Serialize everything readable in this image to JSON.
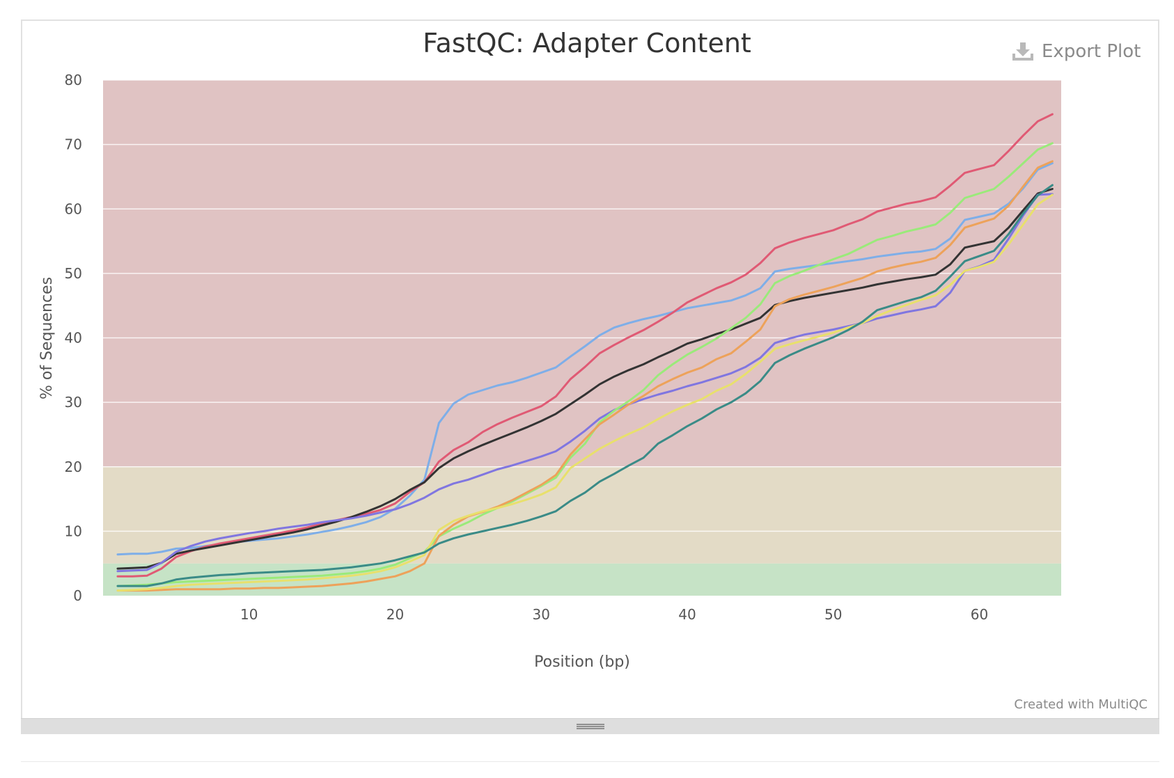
{
  "chart_data": {
    "type": "line",
    "title": "FastQC: Adapter Content",
    "xlabel": "Position (bp)",
    "ylabel": "% of Sequences",
    "xlim": [
      0,
      65.6
    ],
    "ylim": [
      0,
      80
    ],
    "xticks": [
      10,
      20,
      30,
      40,
      50,
      60
    ],
    "yticks": [
      0,
      10,
      20,
      30,
      40,
      50,
      60,
      70,
      80
    ],
    "grid": true,
    "legend": "none",
    "bands": [
      {
        "from": 0,
        "to": 5,
        "color": "#c6e3c6"
      },
      {
        "from": 5,
        "to": 20,
        "color": "#e3dbc6"
      },
      {
        "from": 20,
        "to": 80,
        "color": "#e0c3c3"
      }
    ],
    "x": [
      1,
      2,
      3,
      4,
      5,
      6,
      7,
      8,
      9,
      10,
      11,
      12,
      13,
      14,
      15,
      16,
      17,
      18,
      19,
      20,
      21,
      22,
      23,
      24,
      25,
      26,
      27,
      28,
      29,
      30,
      31,
      32,
      33,
      34,
      35,
      36,
      37,
      38,
      39,
      40,
      41,
      42,
      43,
      44,
      45,
      46,
      47,
      48,
      49,
      50,
      51,
      52,
      53,
      54,
      55,
      56,
      57,
      58,
      59,
      60,
      61,
      62,
      63,
      64,
      65
    ],
    "series": [
      {
        "color": "#7eaee8",
        "values": [
          6.4,
          6.5,
          6.5,
          6.8,
          7.3,
          7.4,
          7.7,
          8.0,
          8.3,
          8.5,
          8.7,
          8.9,
          9.2,
          9.5,
          9.9,
          10.3,
          10.8,
          11.4,
          12.2,
          13.5,
          15.5,
          18.0,
          26.8,
          29.8,
          31.2,
          31.9,
          32.6,
          33.1,
          33.8,
          34.6,
          35.4,
          37.1,
          38.7,
          40.4,
          41.6,
          42.3,
          42.9,
          43.4,
          44.0,
          44.6,
          45.0,
          45.4,
          45.8,
          46.6,
          47.7,
          50.3,
          50.7,
          51.0,
          51.3,
          51.6,
          51.9,
          52.2,
          52.6,
          52.9,
          53.2,
          53.4,
          53.8,
          55.4,
          58.3,
          58.8,
          59.3,
          60.8,
          63.2,
          66.1,
          67.1
        ]
      },
      {
        "color": "#e05a74",
        "values": [
          3.0,
          3.0,
          3.1,
          4.2,
          6.0,
          6.9,
          7.6,
          8.1,
          8.5,
          8.9,
          9.3,
          9.7,
          10.1,
          10.6,
          11.2,
          11.7,
          12.2,
          12.7,
          13.3,
          14.3,
          16.1,
          17.6,
          20.8,
          22.6,
          23.8,
          25.4,
          26.6,
          27.6,
          28.5,
          29.4,
          30.9,
          33.6,
          35.5,
          37.6,
          38.9,
          40.1,
          41.2,
          42.5,
          43.9,
          45.5,
          46.6,
          47.7,
          48.6,
          49.8,
          51.6,
          53.9,
          54.8,
          55.5,
          56.1,
          56.7,
          57.6,
          58.4,
          59.6,
          60.2,
          60.8,
          61.2,
          61.8,
          63.6,
          65.6,
          66.2,
          66.8,
          69.0,
          71.4,
          73.6,
          74.7
        ]
      },
      {
        "color": "#333333",
        "values": [
          4.2,
          4.3,
          4.4,
          5.1,
          6.5,
          7.0,
          7.4,
          7.8,
          8.2,
          8.6,
          9.0,
          9.4,
          9.8,
          10.3,
          10.9,
          11.5,
          12.2,
          13.0,
          13.9,
          15.0,
          16.4,
          17.6,
          19.8,
          21.3,
          22.4,
          23.4,
          24.3,
          25.2,
          26.1,
          27.1,
          28.2,
          29.7,
          31.2,
          32.8,
          34.0,
          35.0,
          35.9,
          37.0,
          38.0,
          39.1,
          39.8,
          40.6,
          41.3,
          42.2,
          43.1,
          45.1,
          45.7,
          46.2,
          46.6,
          47.0,
          47.4,
          47.8,
          48.3,
          48.7,
          49.1,
          49.4,
          49.8,
          51.4,
          54.0,
          54.5,
          55.0,
          57.1,
          59.8,
          62.4,
          63.1
        ]
      },
      {
        "color": "#8076e0",
        "values": [
          3.8,
          3.9,
          4.0,
          5.1,
          6.8,
          7.7,
          8.4,
          8.9,
          9.3,
          9.7,
          10.0,
          10.4,
          10.7,
          11.0,
          11.4,
          11.7,
          12.0,
          12.4,
          12.9,
          13.4,
          14.2,
          15.2,
          16.5,
          17.4,
          18.0,
          18.8,
          19.6,
          20.2,
          20.9,
          21.6,
          22.4,
          23.9,
          25.6,
          27.5,
          28.8,
          29.7,
          30.5,
          31.2,
          31.8,
          32.5,
          33.1,
          33.8,
          34.5,
          35.5,
          36.9,
          39.2,
          39.9,
          40.5,
          40.9,
          41.3,
          41.8,
          42.3,
          43.0,
          43.5,
          44.0,
          44.4,
          44.9,
          47.0,
          50.4,
          51.1,
          52.1,
          55.4,
          59.0,
          62.2,
          62.3
        ]
      },
      {
        "color": "#9aea7a",
        "values": [
          1.5,
          1.6,
          1.7,
          1.9,
          2.1,
          2.2,
          2.3,
          2.4,
          2.5,
          2.6,
          2.7,
          2.8,
          2.9,
          3.0,
          3.1,
          3.3,
          3.5,
          3.8,
          4.2,
          4.8,
          5.8,
          6.8,
          9.2,
          10.4,
          11.4,
          12.6,
          13.6,
          14.6,
          15.8,
          17.0,
          18.3,
          21.4,
          23.6,
          26.9,
          28.7,
          30.2,
          31.9,
          34.2,
          35.9,
          37.4,
          38.6,
          39.9,
          41.5,
          43.1,
          45.2,
          48.5,
          49.6,
          50.4,
          51.3,
          52.2,
          53.0,
          54.1,
          55.2,
          55.8,
          56.5,
          57.0,
          57.6,
          59.4,
          61.7,
          62.4,
          63.1,
          65.0,
          67.1,
          69.2,
          70.2
        ]
      },
      {
        "color": "#eda25a",
        "values": [
          0.8,
          0.8,
          0.8,
          0.9,
          1.0,
          1.0,
          1.0,
          1.0,
          1.1,
          1.1,
          1.2,
          1.2,
          1.3,
          1.4,
          1.5,
          1.7,
          1.9,
          2.2,
          2.6,
          3.0,
          3.8,
          5.0,
          9.3,
          11.0,
          12.3,
          13.0,
          13.8,
          14.8,
          16.0,
          17.2,
          18.7,
          21.9,
          24.3,
          26.6,
          28.1,
          29.7,
          31.0,
          32.5,
          33.6,
          34.6,
          35.4,
          36.7,
          37.6,
          39.4,
          41.3,
          44.9,
          46.0,
          46.7,
          47.3,
          47.9,
          48.6,
          49.3,
          50.3,
          50.9,
          51.4,
          51.8,
          52.4,
          54.4,
          57.1,
          57.8,
          58.5,
          60.5,
          63.5,
          66.4,
          67.4
        ]
      },
      {
        "color": "#e8e06c",
        "values": [
          0.8,
          0.9,
          1.0,
          1.2,
          1.5,
          1.7,
          1.8,
          1.9,
          2.0,
          2.1,
          2.2,
          2.3,
          2.4,
          2.5,
          2.7,
          2.9,
          3.1,
          3.4,
          3.8,
          4.4,
          5.3,
          6.3,
          10.2,
          11.6,
          12.4,
          13.1,
          13.6,
          14.2,
          14.9,
          15.7,
          16.8,
          19.8,
          21.3,
          22.8,
          24.0,
          25.1,
          26.1,
          27.4,
          28.6,
          29.6,
          30.5,
          31.8,
          32.8,
          34.4,
          36.3,
          38.3,
          39.0,
          39.6,
          40.2,
          40.8,
          41.6,
          42.3,
          43.4,
          44.3,
          45.1,
          45.9,
          46.6,
          48.2,
          50.4,
          51.0,
          51.8,
          54.5,
          57.6,
          60.7,
          62.2
        ]
      },
      {
        "color": "#3a8b87",
        "values": [
          1.5,
          1.5,
          1.5,
          1.9,
          2.5,
          2.8,
          3.0,
          3.2,
          3.3,
          3.5,
          3.6,
          3.7,
          3.8,
          3.9,
          4.0,
          4.2,
          4.4,
          4.7,
          5.0,
          5.5,
          6.1,
          6.7,
          8.1,
          8.9,
          9.5,
          10.0,
          10.5,
          11.0,
          11.6,
          12.3,
          13.1,
          14.7,
          16.0,
          17.7,
          18.9,
          20.2,
          21.4,
          23.6,
          24.9,
          26.3,
          27.5,
          28.9,
          30.0,
          31.4,
          33.3,
          36.1,
          37.3,
          38.3,
          39.2,
          40.1,
          41.2,
          42.5,
          44.3,
          45.0,
          45.7,
          46.3,
          47.3,
          49.5,
          51.9,
          52.7,
          53.5,
          56.1,
          59.3,
          62.1,
          63.7
        ]
      }
    ]
  },
  "ui": {
    "export_label": "Export Plot",
    "credit": "Created with MultiQC"
  }
}
